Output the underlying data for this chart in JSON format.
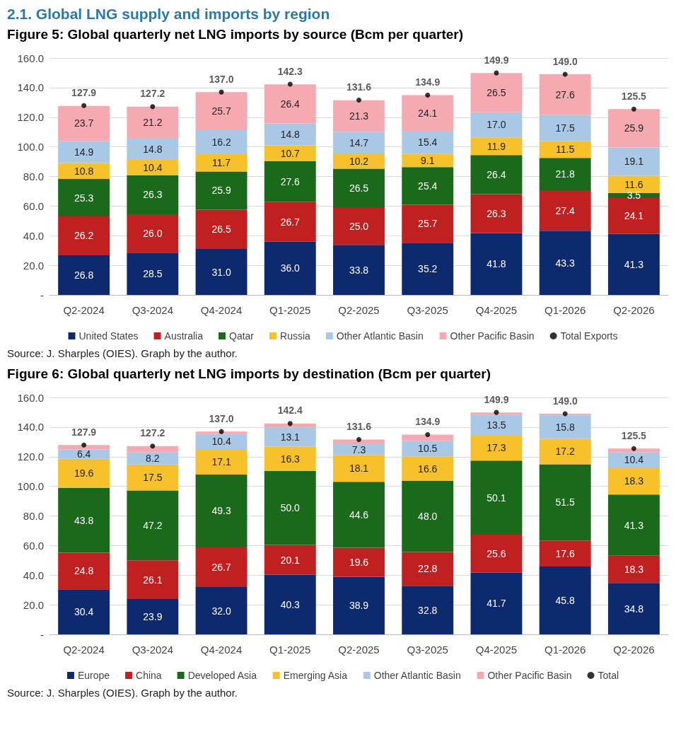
{
  "chart_data": [
    {
      "type": "bar",
      "title": "2.1. Global LNG supply and imports by region",
      "subtitle": "Figure 5: Global quarterly net LNG imports by source (Bcm per quarter)",
      "stacked": true,
      "grid": "y",
      "legend": "bottom",
      "marker": "circle",
      "categories": [
        "Q2-2024",
        "Q3-2024",
        "Q4-2024",
        "Q1-2025",
        "Q2-2025",
        "Q3-2025",
        "Q4-2025",
        "Q1-2026",
        "Q2-2026"
      ],
      "ylim": [
        0,
        160
      ],
      "yticks": [
        {
          "value": 0,
          "label": "-"
        },
        {
          "value": 20,
          "label": "20.0"
        },
        {
          "value": 40,
          "label": "40.0"
        },
        {
          "value": 60,
          "label": "60.0"
        },
        {
          "value": 80,
          "label": "80.0"
        },
        {
          "value": 100,
          "label": "100.0"
        },
        {
          "value": 120,
          "label": "120.0"
        },
        {
          "value": 140,
          "label": "140.0"
        },
        {
          "value": 160,
          "label": "160.0"
        }
      ],
      "series": [
        {
          "name": "United States",
          "color": "#0e2a6e",
          "values": [
            26.8,
            28.5,
            31.0,
            36.0,
            33.8,
            35.2,
            41.8,
            43.3,
            41.3
          ],
          "value_labels": [
            "26.8",
            "28.5",
            "31.0",
            "36.0",
            "33.8",
            "35.2",
            "41.8",
            "43.3",
            "41.3"
          ]
        },
        {
          "name": "Australia",
          "color": "#c0201f",
          "values": [
            26.2,
            26.0,
            26.5,
            26.7,
            25.0,
            25.7,
            26.3,
            27.4,
            24.1
          ],
          "value_labels": [
            "26.2",
            "26.0",
            "26.5",
            "26.7",
            "25.0",
            "25.7",
            "26.3",
            "27.4",
            "24.1"
          ]
        },
        {
          "name": "Qatar",
          "color": "#1b6a1b",
          "values": [
            25.3,
            26.3,
            25.9,
            27.6,
            26.5,
            25.4,
            26.4,
            21.8,
            3.5
          ],
          "value_labels": [
            "25.3",
            "26.3",
            "25.9",
            "27.6",
            "26.5",
            "25.4",
            "26.4",
            "21.8",
            "3.5"
          ]
        },
        {
          "name": "Russia",
          "color": "#f6c12b",
          "values": [
            10.8,
            10.4,
            11.7,
            10.7,
            10.2,
            9.1,
            11.9,
            11.5,
            11.6
          ],
          "value_labels": [
            "10.8",
            "10.4",
            "11.7",
            "10.7",
            "10.2",
            "9.1",
            "11.9",
            "11.5",
            "11.6"
          ]
        },
        {
          "name": "Other Atlantic Basin",
          "color": "#a8c8e6",
          "values": [
            14.9,
            14.8,
            16.2,
            14.8,
            14.7,
            15.4,
            17.0,
            17.5,
            19.1
          ],
          "value_labels": [
            "14.9",
            "14.8",
            "16.2",
            "14.8",
            "14.7",
            "15.4",
            "17.0",
            "17.5",
            "19.1"
          ]
        },
        {
          "name": "Other Pacific Basin",
          "color": "#f5aab1",
          "values": [
            23.7,
            21.2,
            25.7,
            26.4,
            21.3,
            24.1,
            26.5,
            27.6,
            25.9
          ],
          "value_labels": [
            "23.7",
            "21.2",
            "25.7",
            "26.4",
            "21.3",
            "24.1",
            "26.5",
            "27.6",
            "25.9"
          ]
        },
        {
          "name": "Total Exports",
          "type": "scatter",
          "color": "#000000",
          "values": [
            127.9,
            127.2,
            137.0,
            142.3,
            131.6,
            134.9,
            149.9,
            149.0,
            125.5
          ],
          "value_labels": [
            "127.9",
            "127.2",
            "137.0",
            "142.3",
            "131.6",
            "134.9",
            "149.9",
            "149.0",
            "125.5"
          ]
        }
      ],
      "annotations": [
        "Source: J. Sharples (OIES). Graph by the author."
      ]
    },
    {
      "type": "bar",
      "title": "Figure 6: Global quarterly net LNG imports by destination (Bcm per quarter)",
      "stacked": true,
      "grid": "y",
      "legend": "bottom",
      "marker": "circle",
      "categories": [
        "Q2-2024",
        "Q3-2024",
        "Q4-2024",
        "Q1-2025",
        "Q2-2025",
        "Q3-2025",
        "Q4-2025",
        "Q1-2026",
        "Q2-2026"
      ],
      "ylim": [
        0,
        160
      ],
      "yticks": [
        {
          "value": 0,
          "label": "-"
        },
        {
          "value": 20,
          "label": "20.0"
        },
        {
          "value": 40,
          "label": "40.0"
        },
        {
          "value": 60,
          "label": "60.0"
        },
        {
          "value": 80,
          "label": "80.0"
        },
        {
          "value": 100,
          "label": "100.0"
        },
        {
          "value": 120,
          "label": "120.0"
        },
        {
          "value": 140,
          "label": "140.0"
        },
        {
          "value": 160,
          "label": "160.0"
        }
      ],
      "series": [
        {
          "name": "Europe",
          "color": "#0e2a6e",
          "values": [
            30.4,
            23.9,
            32.0,
            40.3,
            38.9,
            32.8,
            41.7,
            45.8,
            34.8
          ],
          "value_labels": [
            "30.4",
            "23.9",
            "32.0",
            "40.3",
            "38.9",
            "32.8",
            "41.7",
            "45.8",
            "34.8"
          ]
        },
        {
          "name": "China",
          "color": "#c0201f",
          "values": [
            24.8,
            26.1,
            26.7,
            20.1,
            19.6,
            22.8,
            25.6,
            17.6,
            18.3
          ],
          "value_labels": [
            "24.8",
            "26.1",
            "26.7",
            "20.1",
            "19.6",
            "22.8",
            "25.6",
            "17.6",
            "18.3"
          ]
        },
        {
          "name": "Developed Asia",
          "color": "#1b6a1b",
          "values": [
            43.8,
            47.2,
            49.3,
            50.0,
            44.6,
            48.0,
            50.1,
            51.5,
            41.3
          ],
          "value_labels": [
            "43.8",
            "47.2",
            "49.3",
            "50.0",
            "44.6",
            "48.0",
            "50.1",
            "51.5",
            "41.3"
          ]
        },
        {
          "name": "Emerging Asia",
          "color": "#f6c12b",
          "values": [
            19.6,
            17.5,
            17.1,
            16.3,
            18.1,
            16.6,
            17.3,
            17.2,
            18.3
          ],
          "value_labels": [
            "19.6",
            "17.5",
            "17.1",
            "16.3",
            "18.1",
            "16.6",
            "17.3",
            "17.2",
            "18.3"
          ]
        },
        {
          "name": "Other Atlantic Basin",
          "color": "#a8c8e6",
          "values": [
            6.4,
            8.2,
            10.4,
            13.1,
            7.3,
            10.5,
            13.5,
            15.8,
            10.4
          ],
          "value_labels": [
            "6.4",
            "8.2",
            "10.4",
            "13.1",
            "7.3",
            "10.5",
            "13.5",
            "15.8",
            "10.4"
          ]
        },
        {
          "name": "Other Pacific Basin",
          "color": "#f5aab1",
          "values": [
            2.9,
            4.3,
            1.5,
            2.6,
            3.1,
            4.2,
            1.7,
            1.1,
            2.4
          ]
        },
        {
          "name": "Total",
          "type": "scatter",
          "color": "#000000",
          "values": [
            127.9,
            127.2,
            137.0,
            142.4,
            131.6,
            134.9,
            149.9,
            149.0,
            125.5
          ],
          "value_labels": [
            "127.9",
            "127.2",
            "137.0",
            "142.4",
            "131.6",
            "134.9",
            "149.9",
            "149.0",
            "125.5"
          ]
        }
      ],
      "annotations": [
        "Source: J. Sharples (OIES). Graph by the author."
      ]
    }
  ]
}
